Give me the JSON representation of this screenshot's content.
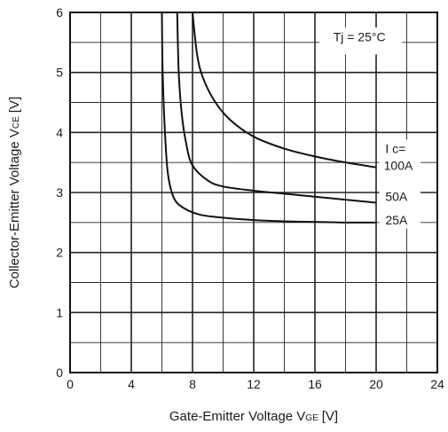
{
  "chart_data": {
    "type": "line",
    "xlabel": "Gate-Emitter Voltage V",
    "xlabel_sub": "GE",
    "xlabel_unit": "[V]",
    "ylabel": "Collector-Emitter Voltage V",
    "ylabel_sub": "CE",
    "ylabel_unit": "[V]",
    "xlim": [
      0,
      24
    ],
    "ylim": [
      0,
      6
    ],
    "xticks": [
      0,
      4,
      8,
      12,
      16,
      20,
      24
    ],
    "yticks": [
      0,
      1,
      2,
      3,
      4,
      5,
      6
    ],
    "x_minor_step": 2,
    "y_minor_step": 0.5,
    "grid": true,
    "condition_label": "Tj =  25°C",
    "legend_title": "I c=",
    "series": [
      {
        "name": "100A",
        "points": [
          [
            8.0,
            6.0
          ],
          [
            8.3,
            5.3
          ],
          [
            8.7,
            4.9
          ],
          [
            9.5,
            4.5
          ],
          [
            10.5,
            4.2
          ],
          [
            12,
            3.93
          ],
          [
            14,
            3.73
          ],
          [
            16,
            3.6
          ],
          [
            18,
            3.5
          ],
          [
            20,
            3.42
          ]
        ]
      },
      {
        "name": "50A",
        "points": [
          [
            7.0,
            6.0
          ],
          [
            7.1,
            5.0
          ],
          [
            7.3,
            4.3
          ],
          [
            7.6,
            3.8
          ],
          [
            8.0,
            3.45
          ],
          [
            9.0,
            3.2
          ],
          [
            10,
            3.1
          ],
          [
            12,
            3.03
          ],
          [
            14,
            2.98
          ],
          [
            16,
            2.93
          ],
          [
            18,
            2.88
          ],
          [
            20,
            2.83
          ]
        ]
      },
      {
        "name": "25A",
        "points": [
          [
            6.0,
            6.0
          ],
          [
            6.05,
            5.0
          ],
          [
            6.2,
            4.0
          ],
          [
            6.4,
            3.3
          ],
          [
            6.8,
            2.9
          ],
          [
            7.5,
            2.73
          ],
          [
            8.5,
            2.63
          ],
          [
            10,
            2.58
          ],
          [
            12,
            2.54
          ],
          [
            14,
            2.52
          ],
          [
            16,
            2.51
          ],
          [
            18,
            2.5
          ],
          [
            20,
            2.5
          ]
        ]
      }
    ]
  }
}
